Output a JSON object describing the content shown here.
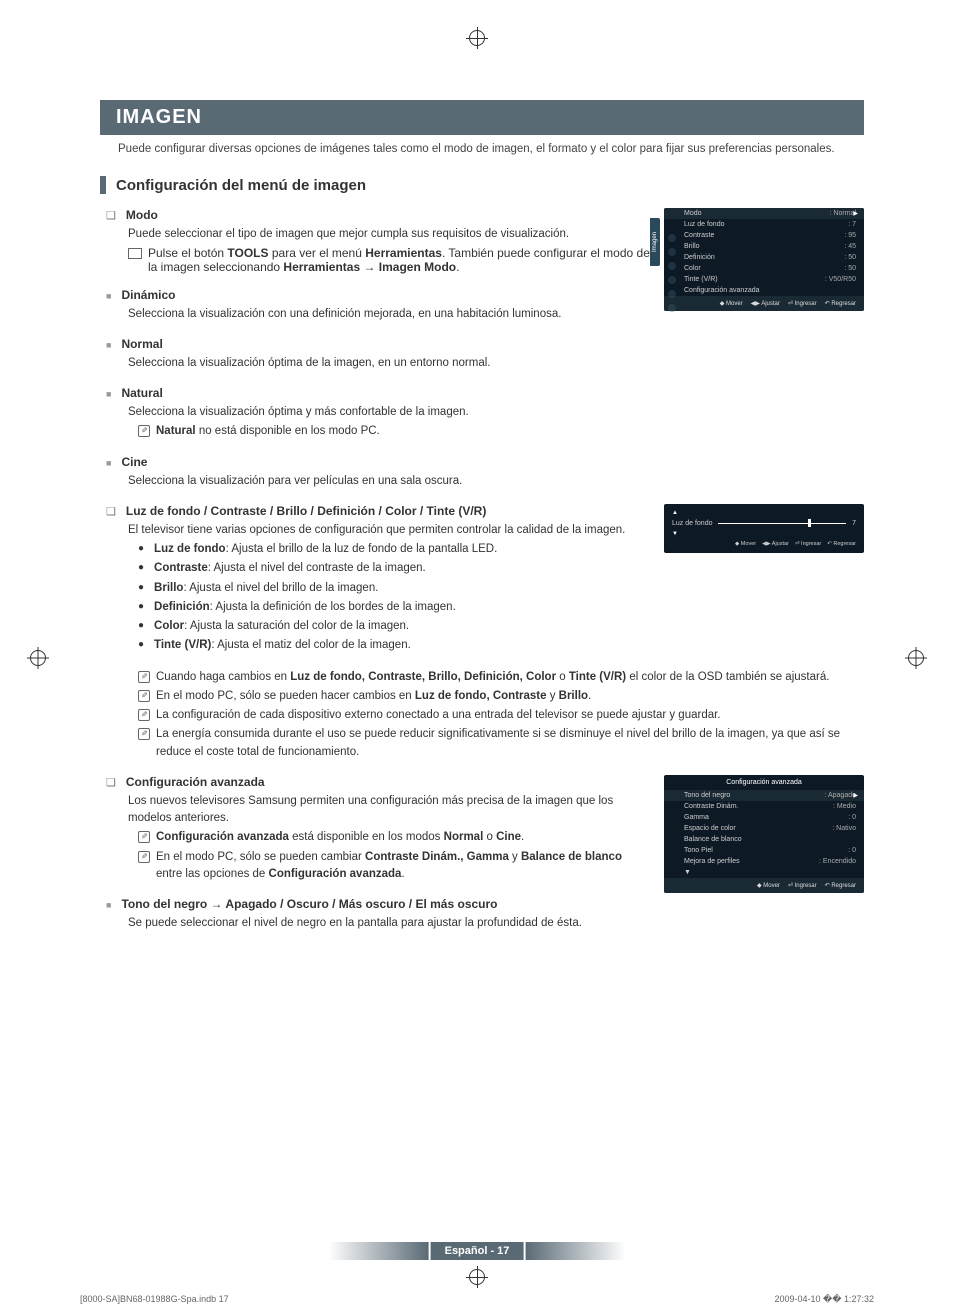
{
  "main_title": "IMAGEN",
  "intro": "Puede configurar diversas opciones de imágenes tales como el modo de imagen, el formato y el color para fijar sus preferencias personales.",
  "section_title": "Configuración del menú de imagen",
  "modo": {
    "title": "Modo",
    "desc": "Puede seleccionar el tipo de imagen que mejor cumpla sus requisitos de visualización.",
    "tool_text_1": "Pulse el botón ",
    "tool_bold_1": "TOOLS",
    "tool_text_2": " para ver el menú ",
    "tool_bold_2": "Herramientas",
    "tool_text_3": ". También puede configurar el modo de la imagen seleccionando ",
    "tool_bold_3": "Herramientas → Imagen Modo",
    "tool_text_4": "."
  },
  "dinamico": {
    "title": "Dinámico",
    "desc": "Selecciona la visualización con una definición mejorada, en una habitación luminosa."
  },
  "normal": {
    "title": "Normal",
    "desc": "Selecciona la visualización óptima de la imagen, en un entorno normal."
  },
  "natural": {
    "title": "Natural",
    "desc": "Selecciona la visualización óptima y más confortable de la imagen.",
    "note_bold": "Natural",
    "note_text": " no está disponible en los modo PC."
  },
  "cine": {
    "title": "Cine",
    "desc": "Selecciona la visualización para ver películas en una sala oscura."
  },
  "luz": {
    "title": "Luz de fondo / Contraste / Brillo / Definición / Color / Tinte (V/R)",
    "desc": "El televisor tiene varias opciones de configuración que permiten controlar la calidad de la imagen.",
    "items": [
      {
        "bold": "Luz de fondo",
        "text": ": Ajusta el brillo de la luz de fondo de la pantalla LED."
      },
      {
        "bold": "Contraste",
        "text": ": Ajusta el nivel del contraste de la imagen."
      },
      {
        "bold": "Brillo",
        "text": ": Ajusta el nivel del brillo de la imagen."
      },
      {
        "bold": "Definición",
        "text": ": Ajusta la definición de los bordes de la imagen."
      },
      {
        "bold": "Color",
        "text": ": Ajusta la saturación del color de la imagen."
      },
      {
        "bold": "Tinte (V/R)",
        "text": ": Ajusta el matiz del color de la imagen."
      }
    ],
    "notes": [
      {
        "pre": "Cuando haga cambios en ",
        "bold": "Luz de fondo, Contraste, Brillo, Definición, Color",
        "mid": " o ",
        "bold2": "Tinte (V/R)",
        "post": " el color de la OSD también se ajustará."
      },
      {
        "pre": "En el modo PC, sólo se pueden hacer cambios en ",
        "bold": "Luz de fondo, Contraste",
        "mid": " y ",
        "bold2": "Brillo",
        "post": "."
      },
      {
        "pre": "La configuración de cada dispositivo externo conectado a una entrada del televisor se puede ajustar y guardar.",
        "bold": "",
        "mid": "",
        "bold2": "",
        "post": ""
      },
      {
        "pre": "La energía consumida durante el uso se puede reducir significativamente si se disminuye el nivel del brillo de la imagen, ya que así se reduce el coste total de funcionamiento.",
        "bold": "",
        "mid": "",
        "bold2": "",
        "post": ""
      }
    ]
  },
  "avanzada": {
    "title": "Configuración avanzada",
    "desc": "Los nuevos televisores Samsung permiten una configuración más precisa de la imagen que los modelos anteriores.",
    "n1_bold": "Configuración avanzada",
    "n1_mid": " está disponible en los modos ",
    "n1_b2": "Normal",
    "n1_mid2": " o ",
    "n1_b3": "Cine",
    "n1_post": ".",
    "n2_pre": "En el modo PC, sólo se pueden cambiar ",
    "n2_bold": "Contraste Dinám., Gamma",
    "n2_mid": " y ",
    "n2_b2": "Balance de blanco",
    "n2_mid2": " entre las opciones de ",
    "n2_b3": "Configuración avanzada",
    "n2_post": "."
  },
  "tono": {
    "title": "Tono del negro → Apagado / Oscuro / Más oscuro / El más oscuro",
    "desc": "Se puede seleccionar el nivel de negro en la pantalla para ajustar la profundidad de ésta."
  },
  "osd1": {
    "side_label": "Imagen",
    "rows": [
      {
        "label": "Modo",
        "value": ": Normal",
        "active": true
      },
      {
        "label": "Luz de fondo",
        "value": ": 7"
      },
      {
        "label": "Contraste",
        "value": ": 95"
      },
      {
        "label": "Brillo",
        "value": ": 45"
      },
      {
        "label": "Definición",
        "value": ": 50"
      },
      {
        "label": "Color",
        "value": ": 50"
      },
      {
        "label": "Tinte (V/R)",
        "value": ": V50/R50"
      },
      {
        "label": "Configuración avanzada",
        "value": ""
      }
    ],
    "footer": [
      "◆ Mover",
      "◀▶ Ajustar",
      "⏎ Ingresar",
      "↶ Regresar"
    ]
  },
  "slider": {
    "label": "Luz de fondo",
    "value": "7",
    "footer": [
      "◆ Mover",
      "◀▶ Ajustar",
      "⏎ Ingresar",
      "↶ Regresar"
    ]
  },
  "osd2": {
    "title": "Configuración avanzada",
    "rows": [
      {
        "label": "Tono del negro",
        "value": ": Apagado",
        "active": true
      },
      {
        "label": "Contraste Dinám.",
        "value": ": Medio"
      },
      {
        "label": "Gamma",
        "value": ": 0"
      },
      {
        "label": "Espacio de color",
        "value": ": Nativo"
      },
      {
        "label": "Balance de blanco",
        "value": ""
      },
      {
        "label": "Tono Piel",
        "value": ": 0"
      },
      {
        "label": "Mejora de perfiles",
        "value": ": Encendido"
      }
    ],
    "footer": [
      "◆ Mover",
      "⏎ Ingresar",
      "↶ Regresar"
    ]
  },
  "page_label": "Español - 17",
  "doc_left": "[8000-SA]BN68-01988G-Spa.indb   17",
  "doc_right": "2009-04-10   �� 1:27:32"
}
